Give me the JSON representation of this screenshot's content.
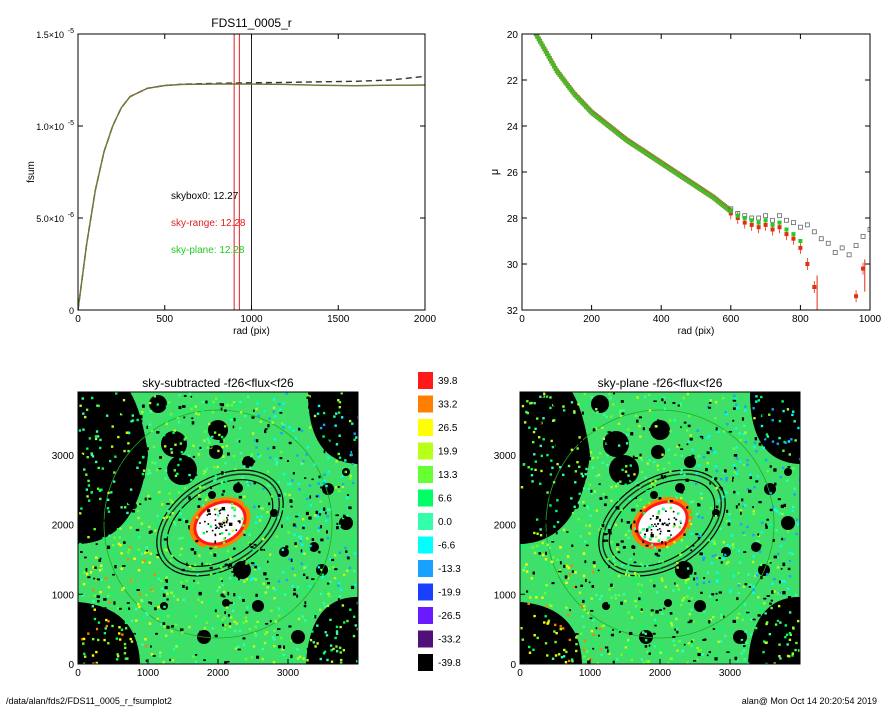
{
  "footer": {
    "path": "/data/alan/fds2/FDS11_0005_r_fsumplot2",
    "user_time": "alan@  Mon Oct 14 20:20:54 2019"
  },
  "chart_data": [
    {
      "type": "line",
      "title": "FDS11_0005_r",
      "xlabel": "rad (pix)",
      "ylabel": "fsum",
      "xlim": [
        0,
        2000
      ],
      "ylim": [
        0,
        1.5e-05
      ],
      "xticks": [
        "0",
        "500",
        "1000",
        "1500",
        "2000"
      ],
      "yticks": [
        {
          "v": 0,
          "mant": "0",
          "exp": ""
        },
        {
          "v": 5e-06,
          "mant": "5.0×10",
          "exp": "-6"
        },
        {
          "v": 1e-05,
          "mant": "1.0×10",
          "exp": "-5"
        },
        {
          "v": 1.5e-05,
          "mant": "1.5×10",
          "exp": "-5"
        }
      ],
      "vlines": [
        {
          "x": 900,
          "color": "#e02020"
        },
        {
          "x": 930,
          "color": "#e02020"
        },
        {
          "x": 1000,
          "color": "#222222"
        }
      ],
      "annotations": [
        {
          "text": "skybox0: 12.27",
          "color": "#000000"
        },
        {
          "text": "sky-range: 12.28",
          "color": "#e02020"
        },
        {
          "text": "sky-plane: 12.28",
          "color": "#22cc22"
        }
      ],
      "series": [
        {
          "style": "dashed",
          "color": "#333333",
          "x": [
            0,
            50,
            100,
            150,
            200,
            250,
            300,
            400,
            500,
            600,
            800,
            1000,
            1200,
            1400,
            1600,
            1800,
            1900,
            2000
          ],
          "y": [
            0,
            3.6e-06,
            6.5e-06,
            8.6e-06,
            1e-05,
            1.1e-05,
            1.16e-05,
            1.205e-05,
            1.22e-05,
            1.227e-05,
            1.232e-05,
            1.235e-05,
            1.237e-05,
            1.24e-05,
            1.243e-05,
            1.25e-05,
            1.26e-05,
            1.27e-05
          ]
        },
        {
          "style": "solid",
          "color": "#e02020",
          "x": [
            0,
            50,
            100,
            150,
            200,
            250,
            300,
            400,
            500,
            600,
            800,
            1000,
            1200,
            1400,
            1600,
            1800,
            1900,
            2000
          ],
          "y": [
            0,
            3.6e-06,
            6.5e-06,
            8.6e-06,
            1e-05,
            1.1e-05,
            1.16e-05,
            1.205e-05,
            1.22e-05,
            1.226e-05,
            1.228e-05,
            1.228e-05,
            1.226e-05,
            1.221e-05,
            1.219e-05,
            1.222e-05,
            1.222e-05,
            1.223e-05
          ]
        },
        {
          "style": "solid",
          "color": "#3a9a3a",
          "x": [
            0,
            50,
            100,
            150,
            200,
            250,
            300,
            400,
            500,
            600,
            800,
            1000,
            1200,
            1400,
            1600,
            1800,
            1900,
            2000
          ],
          "y": [
            0,
            3.6e-06,
            6.5e-06,
            8.6e-06,
            1e-05,
            1.1e-05,
            1.16e-05,
            1.205e-05,
            1.22e-05,
            1.226e-05,
            1.228e-05,
            1.228e-05,
            1.226e-05,
            1.221e-05,
            1.219e-05,
            1.222e-05,
            1.222e-05,
            1.223e-05
          ]
        }
      ]
    },
    {
      "type": "scatter",
      "title": "",
      "xlabel": "rad (pix)",
      "ylabel": "μ",
      "xlim": [
        0,
        1000
      ],
      "ylim": [
        32,
        20
      ],
      "xticks": [
        "0",
        "200",
        "400",
        "600",
        "800",
        "1000"
      ],
      "yticks": [
        "20",
        "22",
        "24",
        "26",
        "28",
        "30",
        "32"
      ],
      "profile": {
        "x": [
          40,
          100,
          150,
          200,
          250,
          300,
          350,
          400,
          450,
          500,
          550,
          600
        ],
        "y": [
          20.0,
          21.6,
          22.6,
          23.4,
          24.0,
          24.6,
          25.1,
          25.6,
          26.1,
          26.6,
          27.1,
          27.7
        ]
      },
      "series": [
        {
          "name": "",
          "marker": "square-open",
          "color": "#666666",
          "x": [
            600,
            620,
            640,
            660,
            680,
            700,
            720,
            740,
            760,
            780,
            800,
            820,
            840,
            860,
            880,
            900,
            920,
            940,
            960,
            980,
            1000
          ],
          "y": [
            27.6,
            27.8,
            27.9,
            28.0,
            28.0,
            27.9,
            28.1,
            27.9,
            28.1,
            28.2,
            28.4,
            28.3,
            28.6,
            28.9,
            29.1,
            29.5,
            29.3,
            29.6,
            29.2,
            28.8,
            28.5
          ]
        },
        {
          "name": "",
          "marker": "square-filled",
          "color": "#e03010",
          "x": [
            600,
            620,
            640,
            660,
            680,
            700,
            720,
            740,
            760,
            780,
            800,
            820,
            840,
            960,
            980
          ],
          "y": [
            27.8,
            28.0,
            28.2,
            28.3,
            28.4,
            28.3,
            28.5,
            28.4,
            28.7,
            28.9,
            29.3,
            30.0,
            31.0,
            31.4,
            30.2
          ]
        },
        {
          "name": "",
          "marker": "square-filled",
          "color": "#22cc22",
          "x": [
            600,
            620,
            640,
            660,
            680,
            700,
            720,
            740,
            760,
            780,
            800
          ],
          "y": [
            27.7,
            27.9,
            28.0,
            28.1,
            28.2,
            28.1,
            28.3,
            28.2,
            28.5,
            28.7,
            29.0
          ]
        }
      ]
    },
    {
      "type": "heatmap",
      "title": "sky-subtracted -f26<flux<f26",
      "xticks": [
        "0",
        "1000",
        "2000",
        "3000"
      ],
      "yticks": [
        "0",
        "1000",
        "2000",
        "3000"
      ],
      "xlim": [
        0,
        4000
      ],
      "ylim": [
        0,
        3900
      ]
    },
    {
      "type": "heatmap",
      "title": "sky-plane -f26<flux<f26",
      "xticks": [
        "0",
        "1000",
        "2000",
        "3000"
      ],
      "yticks": [
        "0",
        "1000",
        "2000",
        "3000"
      ],
      "xlim": [
        0,
        4000
      ],
      "ylim": [
        0,
        3900
      ]
    }
  ],
  "colorbar": {
    "labels": [
      "39.8",
      "33.2",
      "26.5",
      "19.9",
      "13.3",
      "6.6",
      "0.0",
      "-6.6",
      "-13.3",
      "-19.9",
      "-26.5",
      "-33.2",
      "-39.8"
    ],
    "colors": [
      "#ff1a1a",
      "#ff8000",
      "#ffff00",
      "#b8ff1a",
      "#66ff33",
      "#00ff66",
      "#33ffaa",
      "#00ffff",
      "#1aa0ff",
      "#1a40ff",
      "#6a1aff",
      "#50107a",
      "#000000"
    ]
  }
}
